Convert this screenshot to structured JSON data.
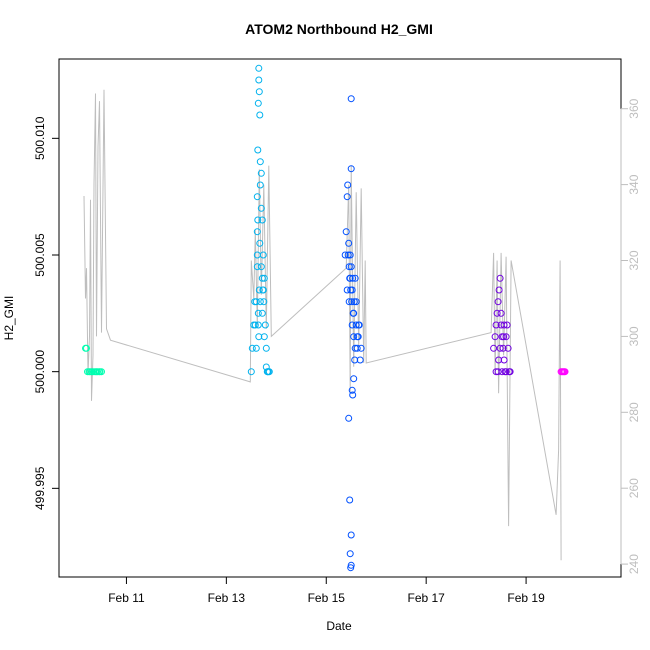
{
  "chart_data": {
    "type": "scatter",
    "title": "ATOM2 Northbound H2_GMI",
    "xlabel": "Date",
    "ylabel": "H2_GMI",
    "x_ticks": [
      "Feb 11",
      "Feb 13",
      "Feb 15",
      "Feb 17",
      "Feb 19"
    ],
    "x_tick_values": [
      11,
      13,
      15,
      17,
      19
    ],
    "xlim": [
      9.65,
      20.9
    ],
    "y_ticks": [
      "499.995",
      "500.000",
      "500.005",
      "500.010"
    ],
    "y_tick_values": [
      499.995,
      500.0,
      500.005,
      500.01
    ],
    "ylim": [
      499.9912,
      500.0134
    ],
    "y2_ticks": [
      "240",
      "260",
      "280",
      "300",
      "320",
      "340",
      "360"
    ],
    "y2_tick_values": [
      240,
      260,
      280,
      300,
      320,
      340,
      360
    ],
    "y2lim": [
      236.6,
      373.1
    ],
    "grid": false,
    "legend": "none",
    "line_color": "#bebebe",
    "altitude_series": {
      "x": [
        10.15,
        10.18,
        10.2,
        10.23,
        10.26,
        10.28,
        10.3,
        10.33,
        10.35,
        10.38,
        10.4,
        10.43,
        10.46,
        10.5,
        10.55,
        10.6,
        10.68,
        13.48,
        13.5,
        13.55,
        13.58,
        13.62,
        13.66,
        13.7,
        13.75,
        13.8,
        13.85,
        13.9,
        15.4,
        15.45,
        15.48,
        15.5,
        15.55,
        15.6,
        15.65,
        15.7,
        15.75,
        15.78,
        15.8,
        18.3,
        18.35,
        18.38,
        18.42,
        18.45,
        18.5,
        18.55,
        18.6,
        18.65,
        18.7,
        19.6,
        19.65,
        19.68,
        19.7
      ],
      "y": [
        337,
        310,
        318,
        290,
        300,
        336,
        283,
        295,
        340,
        364,
        300,
        350,
        362,
        301,
        365,
        302,
        299,
        288,
        320,
        310,
        328,
        303,
        344,
        311,
        340,
        302,
        345,
        300,
        318,
        340,
        285,
        345,
        292,
        338,
        297,
        339,
        293,
        320,
        293,
        301,
        322,
        290,
        320,
        285,
        322,
        295,
        321,
        250,
        320,
        253,
        270,
        320,
        241
      ]
    },
    "series": [
      {
        "color": "#00ffb0",
        "x": [
          10.18,
          10.2,
          10.22,
          10.25,
          10.27,
          10.3,
          10.32,
          10.35,
          10.38,
          10.4,
          10.42,
          10.45,
          10.47,
          10.5
        ],
        "y": [
          500.001,
          500.001,
          500.0,
          500.0,
          500.0,
          500.0,
          500.0,
          500.0,
          500.0,
          500.0,
          500.0,
          500.0,
          500.0,
          500.0
        ]
      },
      {
        "color": "#00b2ee",
        "x": [
          13.5,
          13.52,
          13.55,
          13.57,
          13.58,
          13.6,
          13.6,
          13.62,
          13.62,
          13.63,
          13.64,
          13.65,
          13.65,
          13.66,
          13.67,
          13.68,
          13.68,
          13.7,
          13.7,
          13.72,
          13.72,
          13.73,
          13.74,
          13.75,
          13.76,
          13.78,
          13.8,
          13.82,
          13.84,
          13.86,
          13.62,
          13.63,
          13.62,
          13.64,
          13.65,
          13.64,
          13.66,
          13.68,
          13.67,
          13.7,
          13.72,
          13.74,
          13.76,
          13.8,
          13.83
        ],
        "y": [
          500.0,
          500.001,
          500.002,
          500.003,
          500.002,
          500.003,
          500.001,
          500.005,
          500.0075,
          500.0095,
          500.0115,
          500.013,
          500.0125,
          500.012,
          500.011,
          500.009,
          500.008,
          500.0085,
          500.007,
          500.0065,
          500.004,
          500.0035,
          500.005,
          500.003,
          500.004,
          500.002,
          500.001,
          500.0,
          500.0,
          500.0,
          500.006,
          500.0065,
          500.0045,
          500.0025,
          500.0015,
          500.002,
          500.0035,
          500.003,
          500.0055,
          500.0045,
          500.0025,
          500.0035,
          500.0015,
          500.0002,
          500.0
        ]
      },
      {
        "color": "#0050ff",
        "x": [
          15.38,
          15.4,
          15.42,
          15.43,
          15.45,
          15.46,
          15.47,
          15.48,
          15.49,
          15.5,
          15.5,
          15.51,
          15.52,
          15.53,
          15.54,
          15.55,
          15.56,
          15.57,
          15.58,
          15.6,
          15.62,
          15.64,
          15.66,
          15.68,
          15.7,
          15.45,
          15.47,
          15.48,
          15.49,
          15.5,
          15.5,
          15.52,
          15.53,
          15.55,
          15.42,
          15.44,
          15.46,
          15.48,
          15.5,
          15.52,
          15.55,
          15.58,
          15.6,
          15.62,
          15.65
        ],
        "y": [
          500.005,
          500.006,
          500.0075,
          500.008,
          500.0055,
          500.0045,
          500.004,
          500.005,
          500.0035,
          500.0117,
          500.0087,
          500.003,
          500.002,
          500.004,
          500.0025,
          500.0015,
          500.003,
          500.0005,
          500.001,
          500.002,
          500.001,
          500.0015,
          500.002,
          500.0005,
          500.001,
          499.998,
          499.9945,
          499.9922,
          499.9916,
          499.993,
          499.9917,
          499.9992,
          499.999,
          499.9997,
          500.0035,
          500.005,
          500.003,
          500.004,
          500.0045,
          500.0035,
          500.0025,
          500.004,
          500.003,
          500.0015,
          500.002
        ]
      },
      {
        "color": "#7000e0",
        "x": [
          18.35,
          18.38,
          18.4,
          18.42,
          18.44,
          18.46,
          18.48,
          18.5,
          18.52,
          18.54,
          18.56,
          18.58,
          18.6,
          18.62,
          18.64,
          18.66,
          18.68,
          18.4,
          18.44,
          18.48,
          18.52,
          18.56,
          18.6,
          18.45,
          18.5,
          18.55
        ],
        "y": [
          500.001,
          500.0015,
          500.002,
          500.0025,
          500.003,
          500.0035,
          500.004,
          500.002,
          500.0015,
          500.001,
          500.0005,
          500.0,
          500.0015,
          500.002,
          500.001,
          500.0,
          500.0,
          500.0,
          500.0,
          500.001,
          500.0,
          500.002,
          500.0,
          500.0005,
          500.0025,
          500.0015
        ]
      },
      {
        "color": "#ff00ff",
        "x": [
          19.7,
          19.72,
          19.74,
          19.76,
          19.78
        ],
        "y": [
          500.0,
          500.0,
          500.0,
          500.0,
          500.0
        ]
      }
    ]
  }
}
